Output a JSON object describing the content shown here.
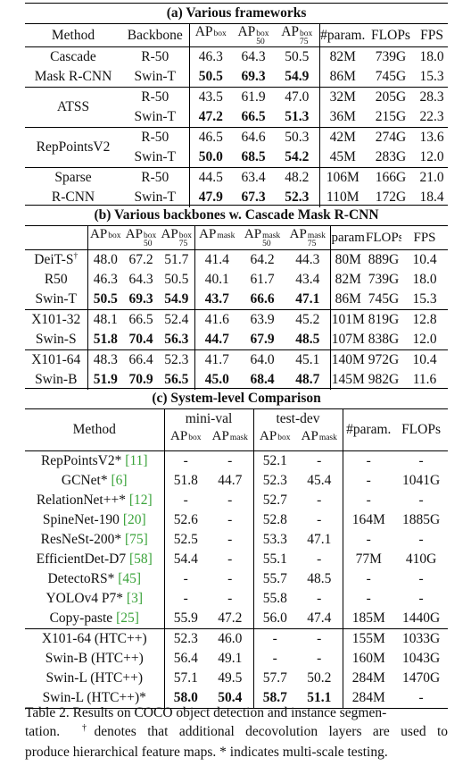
{
  "section_a": {
    "title": "(a) Various frameworks",
    "headers": {
      "method": "Method",
      "backbone": "Backbone",
      "ap": "AP",
      "ap_sup": "box",
      "ap50_sub": "50",
      "ap75_sub": "75",
      "params": "#param.",
      "flops": "FLOPs",
      "fps": "FPS"
    },
    "rows": [
      {
        "m1": "Cascade",
        "m2": "Mask R-CNN",
        "r1": [
          "R-50",
          "46.3",
          "64.3",
          "50.5",
          "82M",
          "739G",
          "18.0"
        ],
        "r2": [
          "Swin-T",
          "50.5",
          "69.3",
          "54.9",
          "86M",
          "745G",
          "15.3"
        ]
      },
      {
        "m1": "ATSS",
        "m2": "",
        "r1": [
          "R-50",
          "43.5",
          "61.9",
          "47.0",
          "32M",
          "205G",
          "28.3"
        ],
        "r2": [
          "Swin-T",
          "47.2",
          "66.5",
          "51.3",
          "36M",
          "215G",
          "22.3"
        ]
      },
      {
        "m1": "RepPointsV2",
        "m2": "",
        "r1": [
          "R-50",
          "46.5",
          "64.6",
          "50.3",
          "42M",
          "274G",
          "13.6"
        ],
        "r2": [
          "Swin-T",
          "50.0",
          "68.5",
          "54.2",
          "45M",
          "283G",
          "12.0"
        ]
      },
      {
        "m1": "Sparse",
        "m2": "R-CNN",
        "r1": [
          "R-50",
          "44.5",
          "63.4",
          "48.2",
          "106M",
          "166G",
          "21.0"
        ],
        "r2": [
          "Swin-T",
          "47.9",
          "67.3",
          "52.3",
          "110M",
          "172G",
          "18.4"
        ]
      }
    ]
  },
  "section_b": {
    "title": "(b) Various backbones w. Cascade Mask R-CNN",
    "headers": {
      "ap": "AP",
      "box": "box",
      "mask": "mask",
      "s50": "50",
      "s75": "75",
      "params": "param",
      "flops": "FLOPs",
      "fps": "FPS"
    },
    "rows": [
      [
        "DeiT-S",
        "48.0",
        "67.2",
        "51.7",
        "41.4",
        "64.2",
        "44.3",
        "80M",
        "889G",
        "10.4"
      ],
      [
        "R50",
        "46.3",
        "64.3",
        "50.5",
        "40.1",
        "61.7",
        "43.4",
        "82M",
        "739G",
        "18.0"
      ],
      [
        "Swin-T",
        "50.5",
        "69.3",
        "54.9",
        "43.7",
        "66.6",
        "47.1",
        "86M",
        "745G",
        "15.3"
      ],
      [
        "X101-32",
        "48.1",
        "66.5",
        "52.4",
        "41.6",
        "63.9",
        "45.2",
        "101M",
        "819G",
        "12.8"
      ],
      [
        "Swin-S",
        "51.8",
        "70.4",
        "56.3",
        "44.7",
        "67.9",
        "48.5",
        "107M",
        "838G",
        "12.0"
      ],
      [
        "X101-64",
        "48.3",
        "66.4",
        "52.3",
        "41.7",
        "64.0",
        "45.1",
        "140M",
        "972G",
        "10.4"
      ],
      [
        "Swin-B",
        "51.9",
        "70.9",
        "56.5",
        "45.0",
        "68.4",
        "48.7",
        "145M",
        "982G",
        "11.6"
      ]
    ],
    "dagger": "†"
  },
  "section_c": {
    "title": "(c) System-level Comparison",
    "headers": {
      "method": "Method",
      "minival": "mini-val",
      "testdev": "test-dev",
      "ap": "AP",
      "box": "box",
      "mask": "mask",
      "params": "#param.",
      "flops": "FLOPs"
    },
    "rows": [
      {
        "name": "RepPointsV2*",
        "cite": "11",
        "v": [
          "-",
          "-",
          "52.1",
          "-",
          "-",
          "-"
        ]
      },
      {
        "name": "GCNet*",
        "cite": "6",
        "v": [
          "51.8",
          "44.7",
          "52.3",
          "45.4",
          "-",
          "1041G"
        ]
      },
      {
        "name": "RelationNet++*",
        "cite": "12",
        "v": [
          "-",
          "-",
          "52.7",
          "-",
          "-",
          "-"
        ]
      },
      {
        "name": "SpineNet-190",
        "cite": "20",
        "v": [
          "52.6",
          "-",
          "52.8",
          "-",
          "164M",
          "1885G"
        ]
      },
      {
        "name": "ResNeSt-200*",
        "cite": "75",
        "v": [
          "52.5",
          "-",
          "53.3",
          "47.1",
          "-",
          "-"
        ]
      },
      {
        "name": "EfficientDet-D7",
        "cite": "58",
        "v": [
          "54.4",
          "-",
          "55.1",
          "-",
          "77M",
          "410G"
        ]
      },
      {
        "name": "DetectoRS*",
        "cite": "45",
        "v": [
          "-",
          "-",
          "55.7",
          "48.5",
          "-",
          "-"
        ]
      },
      {
        "name": "YOLOv4 P7*",
        "cite": "3",
        "v": [
          "-",
          "-",
          "55.8",
          "-",
          "-",
          "-"
        ]
      },
      {
        "name": "Copy-paste",
        "cite": "25",
        "v": [
          "55.9",
          "47.2",
          "56.0",
          "47.4",
          "185M",
          "1440G"
        ]
      },
      {
        "name": "X101-64 (HTC++)",
        "cite": "",
        "v": [
          "52.3",
          "46.0",
          "-",
          "-",
          "155M",
          "1033G"
        ]
      },
      {
        "name": "Swin-B (HTC++)",
        "cite": "",
        "v": [
          "56.4",
          "49.1",
          "-",
          "-",
          "160M",
          "1043G"
        ]
      },
      {
        "name": "Swin-L (HTC++)",
        "cite": "",
        "v": [
          "57.1",
          "49.5",
          "57.7",
          "50.2",
          "284M",
          "1470G"
        ]
      },
      {
        "name": "Swin-L (HTC++)*",
        "cite": "",
        "v": [
          "58.0",
          "50.4",
          "58.7",
          "51.1",
          "284M",
          "-"
        ]
      }
    ]
  },
  "caption": {
    "line1": "Table 2. Results on COCO object detection and instance segmen-",
    "line2_pre": "tation.",
    "dagger": "†",
    "line2_post": "denotes that additional decovolution layers are used to",
    "line3": "produce hierarchical feature maps. * indicates multi-scale testing."
  }
}
